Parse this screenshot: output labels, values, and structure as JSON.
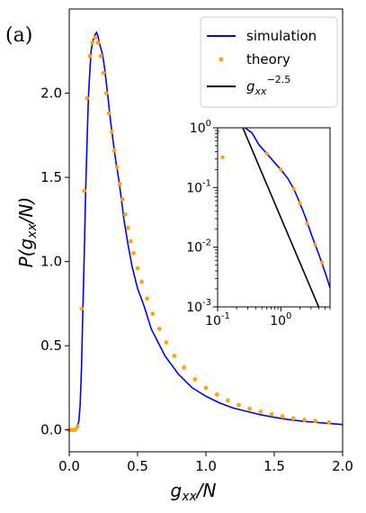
{
  "panel_label": "(a)",
  "chart_data": [
    {
      "id": "main",
      "type": "line",
      "xlabel": "g_xx/N",
      "ylabel": "P(g_xx/N)",
      "xlim": [
        0.0,
        2.0
      ],
      "ylim": [
        -0.13,
        2.5
      ],
      "xticks": [
        0.0,
        0.5,
        1.0,
        1.5,
        2.0
      ],
      "xtick_labels": [
        "0.0",
        "0.5",
        "1.0",
        "1.5",
        "2.0"
      ],
      "yticks": [
        0.0,
        0.5,
        1.0,
        1.5,
        2.0
      ],
      "ytick_labels": [
        "0.0",
        "0.5",
        "1.0",
        "1.5",
        "2.0"
      ],
      "grid": false,
      "legend": {
        "placement": "top-right",
        "entries": [
          {
            "label": "simulation",
            "style": "line",
            "color": "#0000ff"
          },
          {
            "label": "theory",
            "style": "dot",
            "color": "#ffa500"
          },
          {
            "label_base": "g",
            "label_sub": "xx",
            "label_sup": "−2.5",
            "style": "line",
            "color": "#000000"
          }
        ]
      },
      "series": [
        {
          "name": "simulation",
          "color": "#0000ff",
          "x": [
            0.0,
            0.05,
            0.07,
            0.08,
            0.09,
            0.1,
            0.11,
            0.12,
            0.13,
            0.14,
            0.15,
            0.16,
            0.17,
            0.18,
            0.19,
            0.2,
            0.21,
            0.22,
            0.23,
            0.24,
            0.25,
            0.26,
            0.27,
            0.28,
            0.3,
            0.32,
            0.34,
            0.36,
            0.38,
            0.4,
            0.43,
            0.46,
            0.5,
            0.55,
            0.6,
            0.65,
            0.7,
            0.8,
            0.9,
            1.0,
            1.1,
            1.2,
            1.3,
            1.4,
            1.5,
            1.6,
            1.7,
            1.8,
            1.9,
            2.0
          ],
          "y": [
            0.0,
            0.0,
            0.05,
            0.15,
            0.38,
            0.72,
            1.05,
            1.42,
            1.7,
            1.97,
            2.12,
            2.25,
            2.3,
            2.33,
            2.35,
            2.36,
            2.34,
            2.3,
            2.27,
            2.24,
            2.2,
            2.14,
            2.07,
            2.0,
            1.85,
            1.72,
            1.6,
            1.5,
            1.38,
            1.25,
            1.1,
            0.97,
            0.84,
            0.73,
            0.6,
            0.52,
            0.44,
            0.33,
            0.25,
            0.2,
            0.16,
            0.13,
            0.11,
            0.09,
            0.075,
            0.062,
            0.052,
            0.045,
            0.038,
            0.032
          ]
        },
        {
          "name": "theory",
          "color": "#ffa500",
          "x": [
            0.0,
            0.02,
            0.04,
            0.06,
            0.09,
            0.11,
            0.13,
            0.15,
            0.17,
            0.19,
            0.21,
            0.23,
            0.25,
            0.27,
            0.29,
            0.31,
            0.33,
            0.35,
            0.37,
            0.39,
            0.41,
            0.43,
            0.45,
            0.47,
            0.5,
            0.53,
            0.57,
            0.61,
            0.66,
            0.71,
            0.77,
            0.84,
            0.92,
            1.0,
            1.08,
            1.16,
            1.24,
            1.32,
            1.4,
            1.48,
            1.56,
            1.64,
            1.72,
            1.8,
            1.9
          ],
          "y": [
            0.0,
            0.0,
            0.0,
            0.02,
            0.72,
            1.42,
            1.97,
            2.22,
            2.3,
            2.33,
            2.3,
            2.22,
            2.12,
            2.0,
            1.88,
            1.77,
            1.66,
            1.56,
            1.46,
            1.37,
            1.28,
            1.2,
            1.12,
            1.05,
            0.96,
            0.88,
            0.78,
            0.69,
            0.6,
            0.52,
            0.44,
            0.37,
            0.3,
            0.25,
            0.21,
            0.175,
            0.148,
            0.126,
            0.108,
            0.093,
            0.08,
            0.069,
            0.06,
            0.053,
            0.045
          ]
        }
      ]
    },
    {
      "id": "inset",
      "type": "line",
      "xscale": "log",
      "yscale": "log",
      "xlim": [
        0.1,
        6.0
      ],
      "ylim": [
        0.001,
        1.0
      ],
      "xticks": [
        0.1,
        1.0
      ],
      "yticks": [
        0.001,
        0.01,
        0.1,
        1.0
      ],
      "grid": false,
      "series": [
        {
          "name": "simulation",
          "color": "#0000ff",
          "x": [
            0.27,
            0.35,
            0.45,
            0.6,
            0.8,
            1.0,
            1.3,
            1.6,
            2.0,
            2.5,
            3.0,
            3.5,
            4.0,
            4.5,
            5.0,
            5.5,
            6.0
          ],
          "y": [
            1.0,
            0.82,
            0.52,
            0.37,
            0.26,
            0.2,
            0.14,
            0.095,
            0.055,
            0.03,
            0.017,
            0.011,
            0.0075,
            0.0053,
            0.0038,
            0.0028,
            0.0021
          ]
        },
        {
          "name": "theory",
          "color": "#ffa500",
          "x": [
            0.1,
            0.12,
            0.6,
            1.0,
            1.6,
            2.0,
            2.6,
            3.5,
            4.5
          ],
          "y": [
            0.85,
            0.32,
            0.37,
            0.2,
            0.095,
            0.055,
            0.025,
            0.011,
            0.0055
          ]
        },
        {
          "name": "power law",
          "color": "#000000",
          "x": [
            0.25,
            4.45
          ],
          "y": [
            1.0,
            0.00075
          ]
        }
      ]
    }
  ]
}
